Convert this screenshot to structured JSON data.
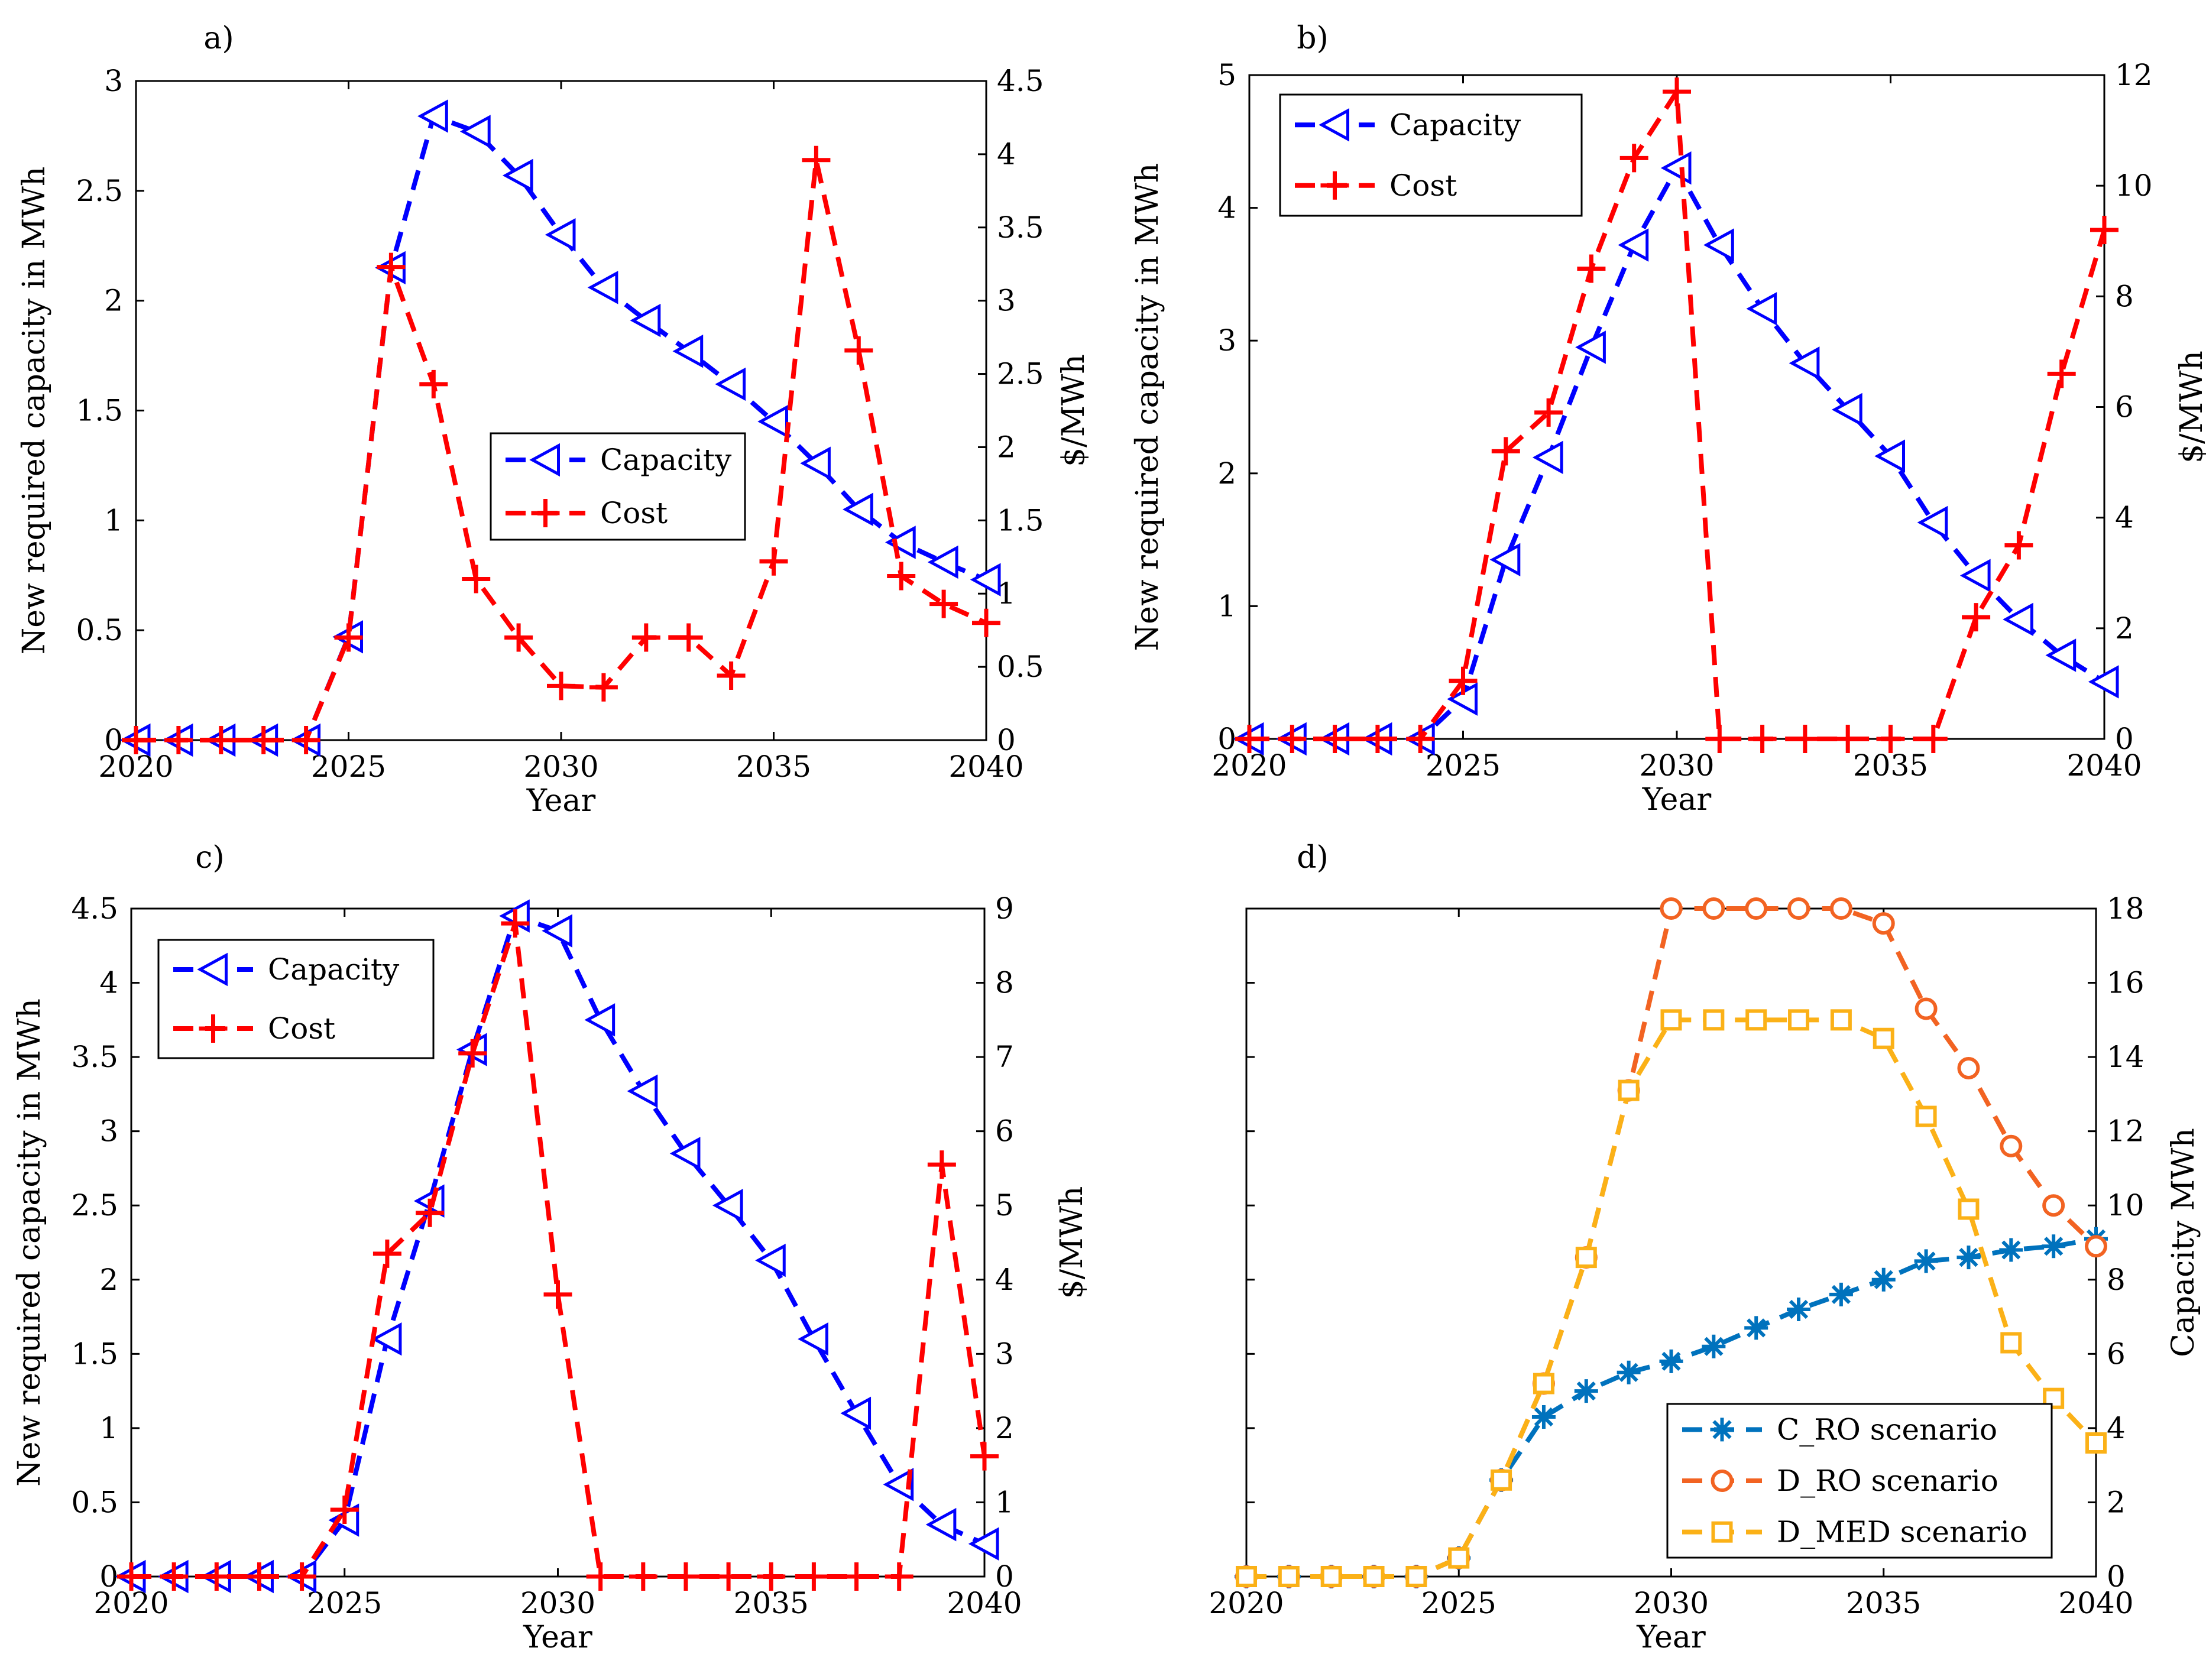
{
  "chart_data": [
    {
      "panel": "a)",
      "type": "line",
      "xlabel": "Year",
      "ylabel_left": "New required capacity in MWh",
      "ylabel_right": "$/MWh",
      "xlim": [
        2020,
        2040
      ],
      "xticks": [
        2020,
        2025,
        2030,
        2035,
        2040
      ],
      "ylim_left": [
        0,
        3
      ],
      "yticks_left": [
        0,
        0.5,
        1,
        1.5,
        2,
        2.5,
        3
      ],
      "ylim_right": [
        0,
        4.5
      ],
      "yticks_right": [
        0,
        0.5,
        1,
        1.5,
        2,
        2.5,
        3,
        3.5,
        4,
        4.5
      ],
      "legend_location": "center-right",
      "x": [
        2020,
        2021,
        2022,
        2023,
        2024,
        2025,
        2026,
        2027,
        2028,
        2029,
        2030,
        2031,
        2032,
        2033,
        2034,
        2035,
        2036,
        2037,
        2038,
        2039,
        2040
      ],
      "series": [
        {
          "name": "Capacity",
          "axis": "left",
          "color": "#0000ff",
          "marker": "triangle-left",
          "values": [
            0,
            0,
            0,
            0,
            0,
            0.47,
            2.15,
            2.84,
            2.77,
            2.57,
            2.3,
            2.06,
            1.91,
            1.77,
            1.62,
            1.45,
            1.26,
            1.05,
            0.9,
            0.81,
            0.73
          ]
        },
        {
          "name": "Cost",
          "axis": "right",
          "color": "#ff0000",
          "marker": "plus",
          "values": [
            0,
            0,
            0,
            0,
            0,
            0.7,
            3.23,
            2.43,
            1.1,
            0.7,
            0.37,
            0.36,
            0.7,
            0.7,
            0.44,
            1.22,
            3.96,
            2.66,
            1.12,
            0.93,
            0.8
          ]
        }
      ]
    },
    {
      "panel": "b)",
      "type": "line",
      "xlabel": "Year",
      "ylabel_left": "New required capacity in MWh",
      "ylabel_right": "$/MWh",
      "xlim": [
        2020,
        2040
      ],
      "xticks": [
        2020,
        2025,
        2030,
        2035,
        2040
      ],
      "ylim_left": [
        0,
        5
      ],
      "yticks_left": [
        0,
        1,
        2,
        3,
        4,
        5
      ],
      "ylim_right": [
        0,
        12
      ],
      "yticks_right": [
        0,
        2,
        4,
        6,
        8,
        10,
        12
      ],
      "legend_location": "top-left",
      "x": [
        2020,
        2021,
        2022,
        2023,
        2024,
        2025,
        2026,
        2027,
        2028,
        2029,
        2030,
        2031,
        2032,
        2033,
        2034,
        2035,
        2036,
        2037,
        2038,
        2039,
        2040
      ],
      "series": [
        {
          "name": "Capacity",
          "axis": "left",
          "color": "#0000ff",
          "marker": "triangle-left",
          "values": [
            0,
            0,
            0,
            0,
            0,
            0.3,
            1.35,
            2.12,
            2.95,
            3.72,
            4.3,
            3.72,
            3.24,
            2.83,
            2.48,
            2.13,
            1.63,
            1.23,
            0.9,
            0.63,
            0.43
          ]
        },
        {
          "name": "Cost",
          "axis": "right",
          "color": "#ff0000",
          "marker": "plus",
          "values": [
            0,
            0,
            0,
            0,
            0,
            1.05,
            5.2,
            5.9,
            8.5,
            10.5,
            11.7,
            0,
            0,
            0,
            0,
            0,
            0,
            2.2,
            3.5,
            6.6,
            9.2
          ]
        }
      ]
    },
    {
      "panel": "c)",
      "type": "line",
      "xlabel": "Year",
      "ylabel_left": "New required capacity in MWh",
      "ylabel_right": "$/MWh",
      "xlim": [
        2020,
        2040
      ],
      "xticks": [
        2020,
        2025,
        2030,
        2035,
        2040
      ],
      "ylim_left": [
        0,
        4.5
      ],
      "yticks_left": [
        0,
        0.5,
        1,
        1.5,
        2,
        2.5,
        3,
        3.5,
        4,
        4.5
      ],
      "ylim_right": [
        0,
        9
      ],
      "yticks_right": [
        0,
        1,
        2,
        3,
        4,
        5,
        6,
        7,
        8,
        9
      ],
      "legend_location": "top-left",
      "x": [
        2020,
        2021,
        2022,
        2023,
        2024,
        2025,
        2026,
        2027,
        2028,
        2029,
        2030,
        2031,
        2032,
        2033,
        2034,
        2035,
        2036,
        2037,
        2038,
        2039,
        2040
      ],
      "series": [
        {
          "name": "Capacity",
          "axis": "left",
          "color": "#0000ff",
          "marker": "triangle-left",
          "values": [
            0,
            0,
            0,
            0,
            0,
            0.38,
            1.6,
            2.53,
            3.55,
            4.45,
            4.35,
            3.75,
            3.27,
            2.85,
            2.5,
            2.13,
            1.6,
            1.1,
            0.62,
            0.35,
            0.22
          ]
        },
        {
          "name": "Cost",
          "axis": "right",
          "color": "#ff0000",
          "marker": "plus",
          "values": [
            0,
            0,
            0,
            0,
            0,
            0.9,
            4.35,
            4.9,
            7.05,
            8.8,
            3.8,
            0,
            0,
            0,
            0,
            0,
            0,
            0,
            0,
            5.55,
            1.62
          ]
        }
      ]
    },
    {
      "panel": "d)",
      "type": "line",
      "xlabel": "Year",
      "ylabel_right": "Capacity MWh",
      "xlim": [
        2020,
        2040
      ],
      "xticks": [
        2020,
        2025,
        2030,
        2035,
        2040
      ],
      "ylim_right": [
        0,
        18
      ],
      "yticks_right": [
        0,
        2,
        4,
        6,
        8,
        10,
        12,
        14,
        16,
        18
      ],
      "legend_location": "bottom-right",
      "x": [
        2020,
        2021,
        2022,
        2023,
        2024,
        2025,
        2026,
        2027,
        2028,
        2029,
        2030,
        2031,
        2032,
        2033,
        2034,
        2035,
        2036,
        2037,
        2038,
        2039,
        2040
      ],
      "series": [
        {
          "name": "C_RO scenario",
          "color": "#0072bd",
          "marker": "asterisk",
          "values": [
            0,
            0,
            0,
            0,
            0,
            0.5,
            2.6,
            4.3,
            5.0,
            5.5,
            5.8,
            6.2,
            6.7,
            7.2,
            7.6,
            8.0,
            8.5,
            8.6,
            8.8,
            8.9,
            9.1
          ]
        },
        {
          "name": "D_RO scenario",
          "color": "#f26322",
          "marker": "circle",
          "values": [
            0,
            0,
            0,
            0,
            0,
            0.5,
            2.6,
            5.2,
            8.6,
            13.1,
            18,
            18,
            18,
            18,
            18,
            17.6,
            15.3,
            13.7,
            11.6,
            10.0,
            8.9
          ]
        },
        {
          "name": "D_MED scenario",
          "color": "#fbb117",
          "marker": "square",
          "values": [
            0,
            0,
            0,
            0,
            0,
            0.5,
            2.6,
            5.2,
            8.6,
            13.1,
            15.0,
            15.0,
            15.0,
            15.0,
            15.0,
            14.5,
            12.4,
            9.9,
            6.3,
            4.8,
            3.6
          ]
        }
      ]
    }
  ]
}
